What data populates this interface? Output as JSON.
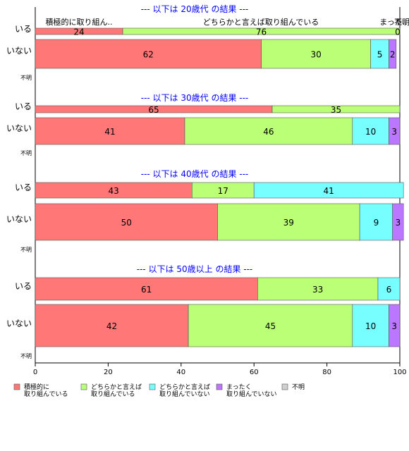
{
  "chart_data": {
    "type": "bar",
    "orientation": "horizontal",
    "stacked": true,
    "xlim": [
      0,
      100
    ],
    "xticks": [
      "0",
      "20",
      "40",
      "60",
      "80",
      "100"
    ],
    "colors": [
      "#ff7777",
      "#bbff77",
      "#77ffff",
      "#bb77ff",
      "#d0d0d0"
    ],
    "legend": {
      "position": "bottom-left",
      "items": [
        {
          "label_lines": [
            "積極的に",
            "取り組んでいる"
          ]
        },
        {
          "label_lines": [
            "どちらかと言えば",
            "取り組んでいる"
          ]
        },
        {
          "label_lines": [
            "どちらかと言えば",
            "取り組んでいない"
          ]
        },
        {
          "label_lines": [
            "まったく",
            "取り組んでいない"
          ]
        },
        {
          "label_lines": [
            "不明"
          ]
        }
      ]
    },
    "panels": [
      {
        "title": "--- 以下は 20歳代 の結果 ---",
        "header_labels": [
          "積極的に取り組ん..",
          "どちらかと言えば取り組んでいる",
          "まった..",
          "不明"
        ],
        "rows": [
          {
            "label": "いる",
            "values": [
              24,
              76,
              0,
              0,
              0
            ],
            "value_labels": [
              "24",
              "76",
              "",
              "0",
              ""
            ]
          },
          {
            "label": "いない",
            "values": [
              62,
              30,
              5,
              2,
              0
            ],
            "value_labels": [
              "62",
              "30",
              "5",
              "2",
              ""
            ]
          },
          {
            "label": "不明",
            "values": [
              0,
              0,
              0,
              0,
              0
            ],
            "value_labels": [
              "",
              "",
              "",
              "",
              ""
            ]
          }
        ]
      },
      {
        "title": "--- 以下は 30歳代 の結果 ---",
        "rows": [
          {
            "label": "いる",
            "values": [
              65,
              35,
              0,
              0,
              0
            ],
            "value_labels": [
              "65",
              "35",
              "",
              "",
              ""
            ]
          },
          {
            "label": "いない",
            "values": [
              41,
              46,
              10,
              3,
              0
            ],
            "value_labels": [
              "41",
              "46",
              "10",
              "3",
              ""
            ]
          },
          {
            "label": "不明",
            "values": [
              0,
              0,
              0,
              0,
              0
            ],
            "value_labels": [
              "",
              "",
              "",
              "",
              ""
            ]
          }
        ]
      },
      {
        "title": "--- 以下は 40歳代 の結果 ---",
        "rows": [
          {
            "label": "いる",
            "values": [
              43,
              17,
              41,
              0,
              0
            ],
            "value_labels": [
              "43",
              "17",
              "41",
              "",
              ""
            ]
          },
          {
            "label": "いない",
            "values": [
              50,
              39,
              9,
              3,
              0
            ],
            "value_labels": [
              "50",
              "39",
              "9",
              "3",
              ""
            ]
          },
          {
            "label": "不明",
            "values": [
              0,
              0,
              0,
              0,
              0
            ],
            "value_labels": [
              "",
              "",
              "",
              "",
              ""
            ]
          }
        ]
      },
      {
        "title": "--- 以下は 50歳以上 の結果 ---",
        "rows": [
          {
            "label": "いる",
            "values": [
              61,
              33,
              6,
              0,
              0
            ],
            "value_labels": [
              "61",
              "33",
              "6",
              "",
              ""
            ]
          },
          {
            "label": "いない",
            "values": [
              42,
              45,
              10,
              3,
              0
            ],
            "value_labels": [
              "42",
              "45",
              "10",
              "3",
              ""
            ]
          },
          {
            "label": "不明",
            "values": [
              0,
              0,
              0,
              0,
              0
            ],
            "value_labels": [
              "",
              "",
              "",
              "",
              ""
            ]
          }
        ]
      }
    ]
  }
}
